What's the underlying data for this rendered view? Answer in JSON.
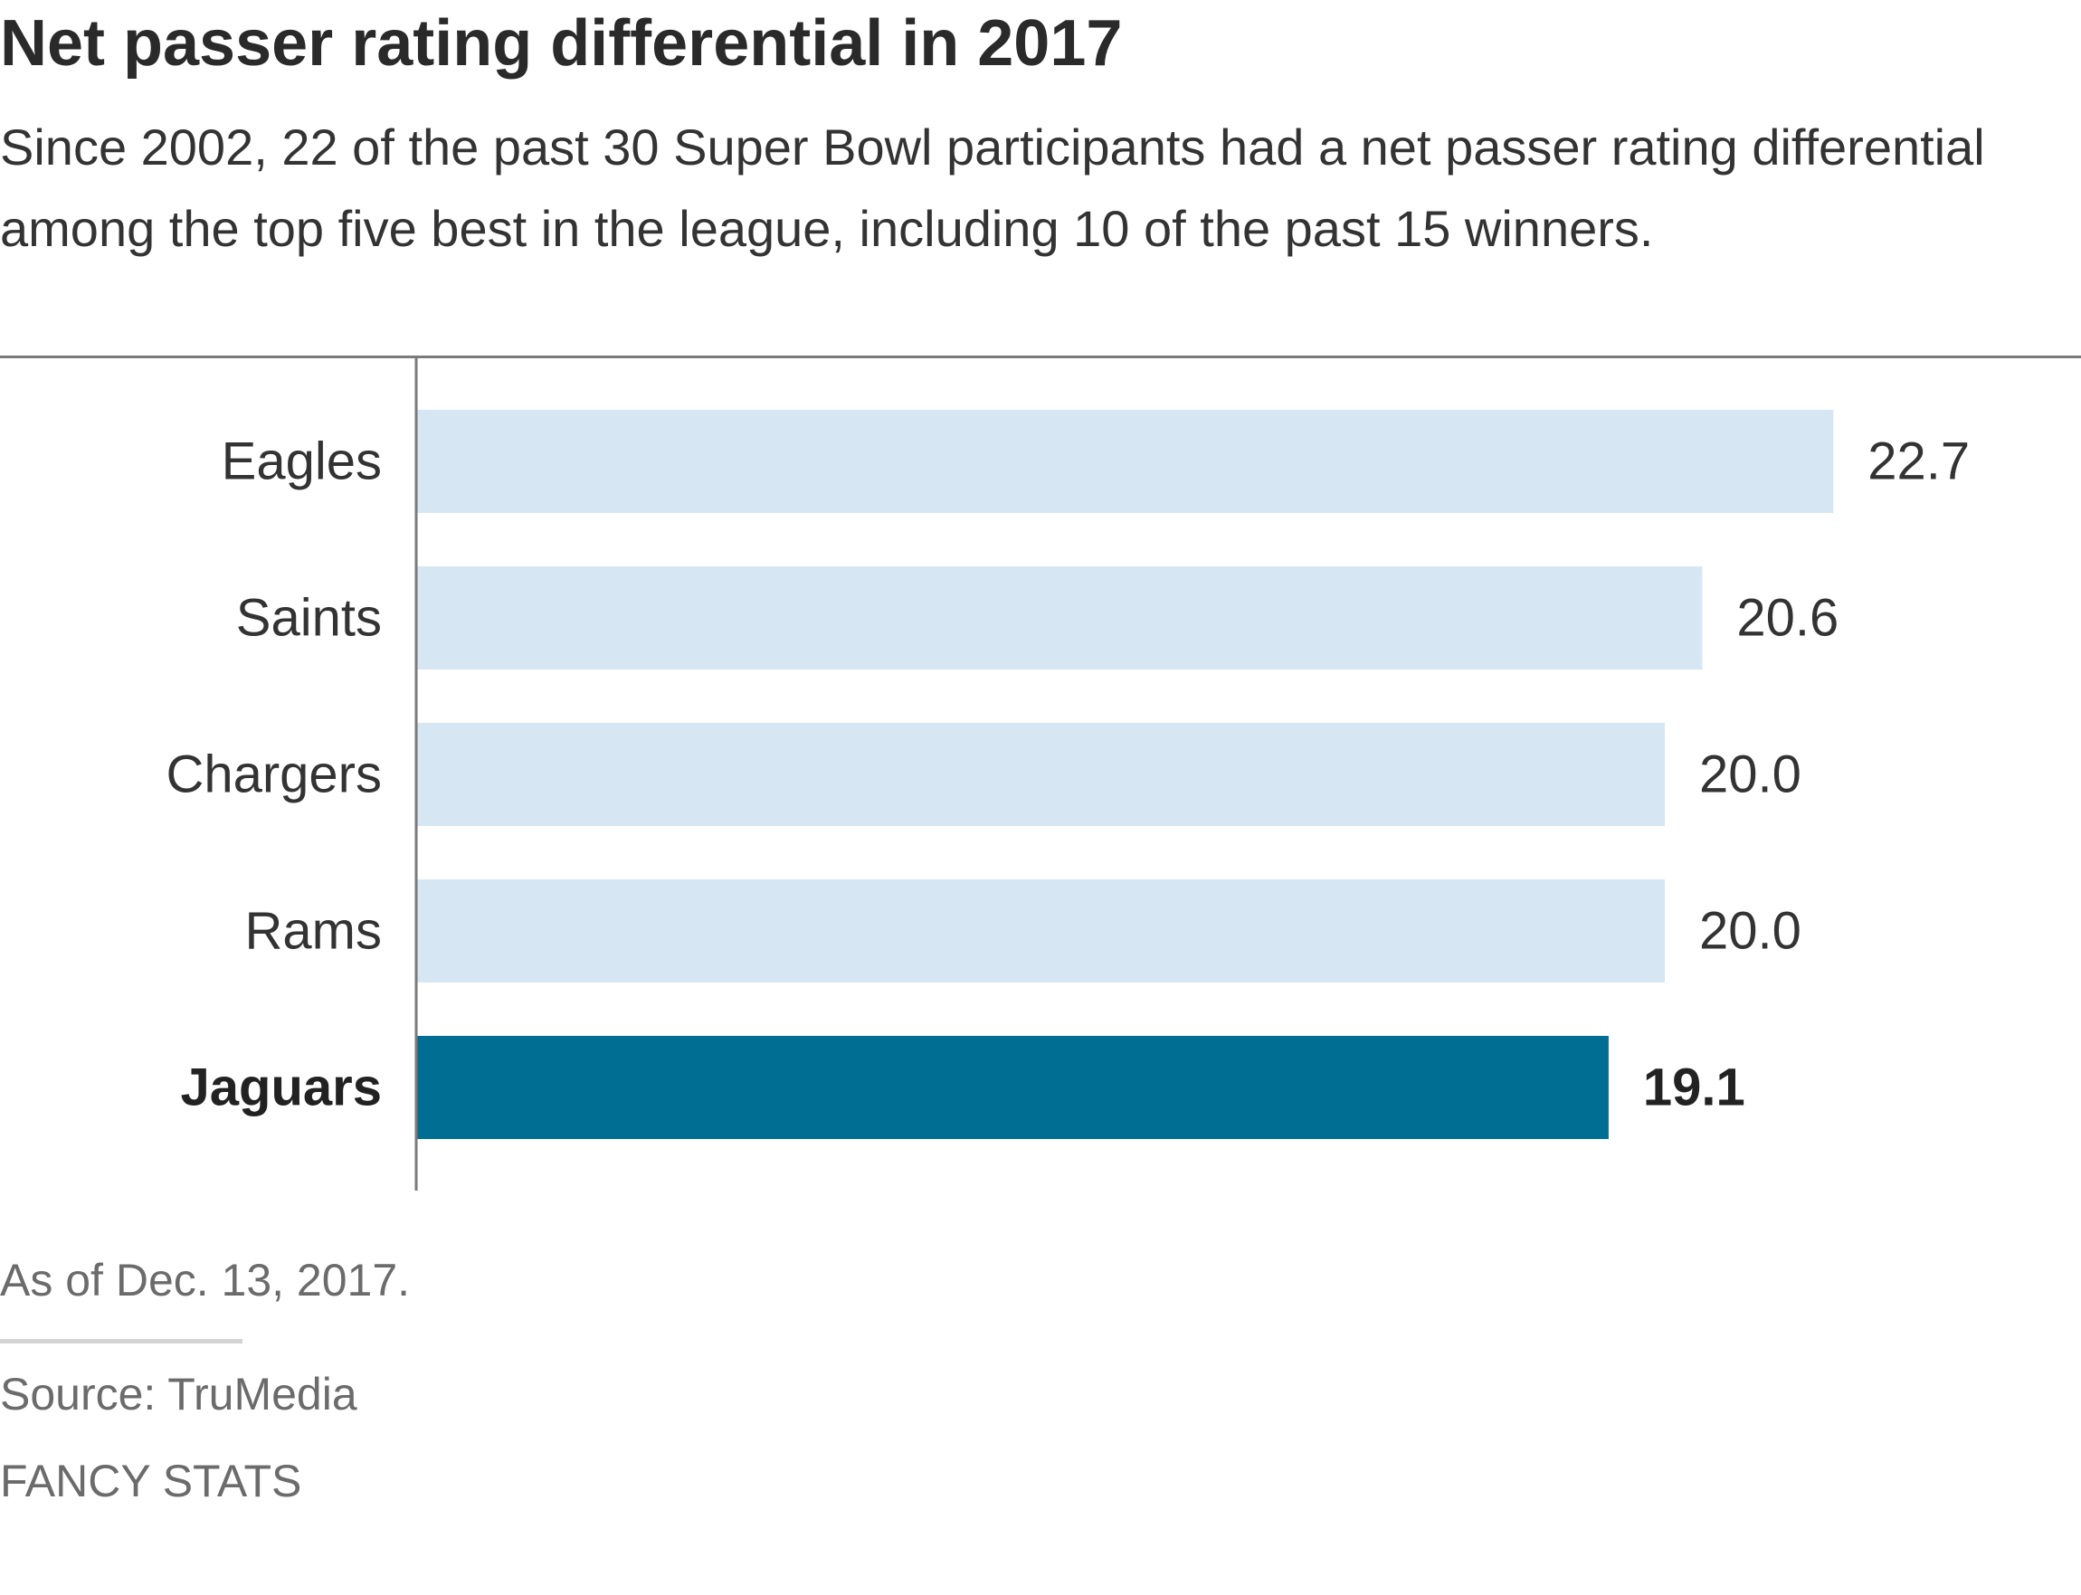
{
  "chart_data": {
    "type": "bar",
    "orientation": "horizontal",
    "title": "Net passer rating differential in 2017",
    "subtitle": "Since 2002, 22 of the past 30 Super Bowl participants had a net passer rating differential among the top five best in the league, including 10 of the past 15 winners.",
    "categories": [
      "Eagles",
      "Saints",
      "Chargers",
      "Rams",
      "Jaguars"
    ],
    "values": [
      22.7,
      20.6,
      20.0,
      20.0,
      19.1
    ],
    "value_labels": [
      "22.7",
      "20.6",
      "20.0",
      "20.0",
      "19.1"
    ],
    "highlight": "Jaguars",
    "xlabel": "",
    "ylabel": "",
    "xlim": [
      0,
      30
    ],
    "grid": false,
    "legend": "none",
    "colors": {
      "bar": "#d6e7f3",
      "highlight_bar": "#006e93",
      "axis": "#7a7a7a",
      "label": "#333333",
      "highlight_label": "#222222"
    }
  },
  "footer": {
    "note": "As of Dec. 13, 2017.",
    "source": "Source: TruMedia",
    "branding": "FANCY STATS"
  }
}
